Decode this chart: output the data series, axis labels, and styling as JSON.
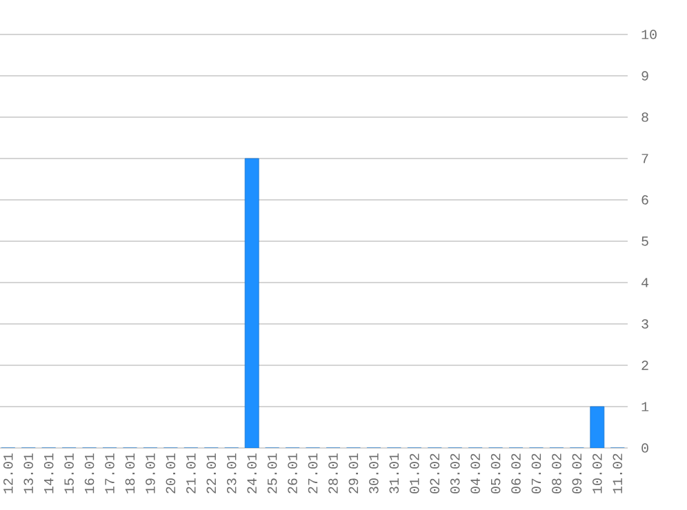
{
  "chart_data": {
    "type": "bar",
    "categories": [
      "12.01",
      "13.01",
      "14.01",
      "15.01",
      "16.01",
      "17.01",
      "18.01",
      "19.01",
      "20.01",
      "21.01",
      "22.01",
      "23.01",
      "24.01",
      "25.01",
      "26.01",
      "27.01",
      "28.01",
      "29.01",
      "30.01",
      "31.01",
      "01.02",
      "02.02",
      "03.02",
      "04.02",
      "05.02",
      "06.02",
      "07.02",
      "08.02",
      "09.02",
      "10.02",
      "11.02"
    ],
    "values": [
      0,
      0,
      0,
      0,
      0,
      0,
      0,
      0,
      0,
      0,
      0,
      0,
      7,
      0,
      0,
      0,
      0,
      0,
      0,
      0,
      0,
      0,
      0,
      0,
      0,
      0,
      0,
      0,
      0,
      1,
      0
    ],
    "color": "#1e90ff",
    "ylim": [
      0,
      10
    ],
    "yticks": [
      0,
      1,
      2,
      3,
      4,
      5,
      6,
      7,
      8,
      9,
      10
    ],
    "grid": "y"
  }
}
